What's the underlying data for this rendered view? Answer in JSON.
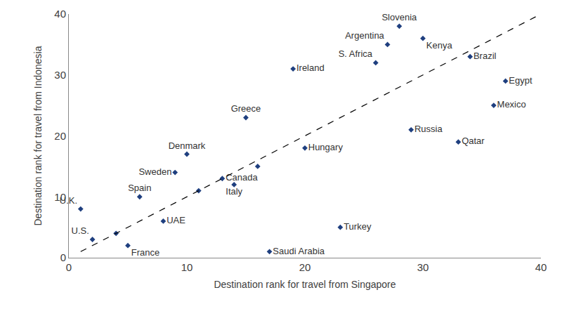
{
  "chart_data": {
    "type": "scatter",
    "xlabel": "Destination rank for travel from Singapore",
    "ylabel": "Destination rank for travel from Indonesia",
    "xlim": [
      0,
      40
    ],
    "ylim": [
      0,
      40
    ],
    "xticks": [
      0,
      10,
      20,
      30,
      40
    ],
    "yticks": [
      0,
      10,
      20,
      30,
      40
    ],
    "grid": false,
    "series": [
      {
        "type": "scatter",
        "color": "#1f3f7f",
        "marker": "diamond",
        "labels": [
          "U.K.",
          "U.S.",
          null,
          "France",
          "Spain",
          "UAE",
          "Sweden",
          "Denmark",
          null,
          "Canada",
          "Italy",
          "Greece",
          null,
          "Saudi Arabia",
          "Ireland",
          "Hungary",
          "Turkey",
          "S. Africa",
          "Argentina",
          "Slovenia",
          "Russia",
          "Kenya",
          "Qatar",
          "Brazil",
          "Mexico",
          "Egypt"
        ],
        "x": [
          1,
          2,
          4,
          5,
          6,
          8,
          9,
          10,
          11,
          13,
          14,
          15,
          16,
          17,
          19,
          20,
          23,
          26,
          27,
          28,
          29,
          30,
          33,
          34,
          36,
          37
        ],
        "values": [
          8,
          3,
          4,
          2,
          10,
          6,
          14,
          17,
          11,
          13,
          12,
          23,
          15,
          1,
          31,
          18,
          5,
          32,
          35,
          38,
          21,
          36,
          19,
          33,
          25,
          29
        ]
      },
      {
        "type": "line",
        "color": "#000000",
        "line_style": "dashed",
        "x": [
          1,
          40
        ],
        "values": [
          1,
          40
        ]
      }
    ]
  }
}
